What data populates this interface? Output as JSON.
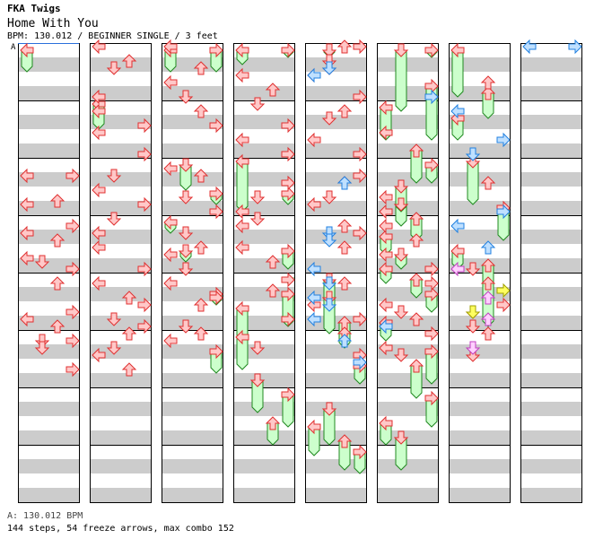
{
  "header": {
    "artist": "FKA Twigs",
    "title": "Home With You",
    "info": "BPM: 130.012 / BEGINNER SINGLE / 3 feet"
  },
  "marker": "A",
  "footer": {
    "bpm_line": "A: 130.012 BPM",
    "summary": "144 steps, 54 freeze arrows, max combo 152"
  },
  "colors": {
    "red_fill": "#ffc8c8",
    "red_stroke": "#e03030",
    "green_fill": "#ccffcc",
    "green_stroke": "#208820",
    "blue_fill": "#bfe0ff",
    "blue_stroke": "#2080e0",
    "pink_fill": "#ffd0ff",
    "pink_stroke": "#c040c0",
    "yellow_fill": "#ffff60",
    "yellow_stroke": "#a0a000",
    "stripe": "#cccccc"
  },
  "notes": [
    [
      [
        0,
        9.25,
        0
      ],
      [
        0,
        9.25,
        3
      ],
      [
        0,
        11.0,
        2
      ],
      [
        0,
        11.25,
        0
      ],
      [
        0,
        12.75,
        3
      ],
      [
        0,
        13.25,
        0
      ],
      [
        0,
        13.75,
        2
      ],
      [
        0,
        15.0,
        0
      ],
      [
        0,
        15.25,
        1
      ],
      [
        0,
        15.75,
        3
      ],
      [
        0,
        16.75,
        2
      ],
      [
        0,
        18.75,
        3
      ],
      [
        0,
        19.25,
        0
      ],
      [
        0,
        19.75,
        2
      ],
      [
        0,
        20.75,
        1
      ],
      [
        0,
        20.75,
        3
      ],
      [
        0,
        21.25,
        1
      ],
      [
        0,
        22.75,
        3
      ]
    ],
    [
      [
        1,
        0.25,
        0
      ],
      [
        1,
        1.25,
        2
      ],
      [
        1,
        1.75,
        1
      ],
      [
        1,
        3.75,
        0
      ],
      [
        1,
        4.75,
        0
      ],
      [
        1,
        5.75,
        3
      ],
      [
        1,
        6.25,
        0
      ],
      [
        1,
        7.75,
        3
      ],
      [
        1,
        9.25,
        1
      ],
      [
        1,
        10.25,
        0
      ],
      [
        1,
        11.25,
        3
      ],
      [
        1,
        12.25,
        1
      ],
      [
        1,
        13.25,
        0
      ],
      [
        1,
        14.25,
        0
      ],
      [
        1,
        15.75,
        3
      ],
      [
        1,
        16.75,
        0
      ],
      [
        1,
        17.75,
        2
      ],
      [
        1,
        18.25,
        3
      ],
      [
        1,
        19.25,
        1
      ],
      [
        1,
        19.75,
        3
      ],
      [
        1,
        20.25,
        2
      ],
      [
        1,
        21.25,
        1
      ],
      [
        1,
        21.75,
        0
      ],
      [
        1,
        22.75,
        2
      ]
    ],
    [
      [
        2,
        0.25,
        0
      ],
      [
        2,
        1.75,
        2
      ],
      [
        2,
        2.75,
        0
      ],
      [
        2,
        3.75,
        1
      ],
      [
        2,
        4.75,
        2
      ],
      [
        2,
        5.75,
        3
      ],
      [
        2,
        8.75,
        0
      ],
      [
        2,
        9.25,
        2
      ],
      [
        2,
        10.75,
        1
      ],
      [
        2,
        11.75,
        3
      ],
      [
        2,
        13.25,
        1
      ],
      [
        2,
        14.25,
        2
      ],
      [
        2,
        14.75,
        0
      ],
      [
        2,
        15.75,
        1
      ],
      [
        2,
        16.75,
        0
      ],
      [
        2,
        17.75,
        3
      ],
      [
        2,
        18.25,
        2
      ],
      [
        2,
        19.75,
        1
      ],
      [
        2,
        20.25,
        2
      ],
      [
        2,
        20.75,
        0
      ]
    ],
    [
      [
        3,
        2.25,
        0
      ],
      [
        3,
        3.25,
        2
      ],
      [
        3,
        4.25,
        1
      ],
      [
        3,
        5.75,
        3
      ],
      [
        3,
        6.75,
        0
      ],
      [
        3,
        7.75,
        3
      ],
      [
        3,
        9.75,
        3
      ],
      [
        3,
        10.75,
        1
      ],
      [
        3,
        11.75,
        0
      ],
      [
        3,
        12.25,
        1
      ],
      [
        3,
        12.75,
        0
      ],
      [
        3,
        14.25,
        0
      ],
      [
        3,
        15.25,
        2
      ],
      [
        3,
        17.25,
        2
      ],
      [
        3,
        19.25,
        3
      ],
      [
        3,
        21.25,
        1
      ]
    ],
    [
      [
        4,
        0.25,
        2
      ],
      [
        4,
        0.25,
        3
      ],
      [
        4,
        1.25,
        1
      ],
      [
        4,
        1.75,
        1
      ],
      [
        4,
        2.25,
        0
      ],
      [
        4,
        3.75,
        3
      ],
      [
        4,
        4.75,
        2
      ],
      [
        4,
        5.25,
        1
      ],
      [
        4,
        6.75,
        0
      ],
      [
        4,
        7.75,
        3
      ],
      [
        4,
        9.25,
        3
      ],
      [
        4,
        9.75,
        2
      ],
      [
        4,
        10.75,
        1
      ],
      [
        4,
        11.25,
        0
      ],
      [
        4,
        12.75,
        2
      ],
      [
        4,
        13.25,
        3
      ],
      [
        4,
        14.25,
        2
      ],
      [
        4,
        16.75,
        2
      ],
      [
        4,
        17.75,
        1
      ],
      [
        4,
        18.25,
        0
      ],
      [
        4,
        19.25,
        3
      ],
      [
        4,
        20.25,
        2
      ],
      [
        4,
        21.75,
        3
      ]
    ],
    [
      [
        5,
        6.25,
        0
      ],
      [
        5,
        10.75,
        0
      ],
      [
        5,
        11.25,
        1
      ],
      [
        5,
        11.75,
        0
      ],
      [
        5,
        12.75,
        0
      ],
      [
        5,
        13.75,
        2
      ],
      [
        5,
        14.75,
        0
      ],
      [
        5,
        15.75,
        3
      ],
      [
        5,
        16.75,
        3
      ],
      [
        5,
        18.25,
        0
      ],
      [
        5,
        18.75,
        1
      ],
      [
        5,
        19.25,
        2
      ],
      [
        5,
        20.25,
        3
      ],
      [
        5,
        21.25,
        0
      ],
      [
        5,
        21.75,
        1
      ]
    ],
    [
      [
        6,
        2.75,
        2
      ],
      [
        6,
        9.75,
        2
      ],
      [
        6,
        15.75,
        1
      ],
      [
        6,
        16.75,
        2
      ],
      [
        6,
        18.25,
        3
      ],
      [
        6,
        18.75,
        1
      ],
      [
        6,
        19.75,
        1
      ],
      [
        6,
        20.25,
        2
      ],
      [
        6,
        21.75,
        1
      ]
    ]
  ],
  "holds": [
    [
      0,
      0.5,
      0,
      2.0
    ],
    [
      1,
      4.25,
      0,
      6.0
    ],
    [
      2,
      0.5,
      0,
      2.0
    ],
    [
      2,
      0.5,
      3,
      2.0
    ],
    [
      2,
      8.5,
      1,
      10.25
    ],
    [
      2,
      10.5,
      3,
      11.25
    ],
    [
      2,
      12.5,
      0,
      13.25
    ],
    [
      2,
      14.5,
      1,
      15.25
    ],
    [
      2,
      17.5,
      3,
      18.25
    ],
    [
      2,
      21.5,
      3,
      23.0
    ],
    [
      3,
      0.5,
      0,
      1.5
    ],
    [
      3,
      0.5,
      3,
      1.0
    ],
    [
      3,
      8.25,
      0,
      11.75
    ],
    [
      3,
      10.5,
      3,
      11.25
    ],
    [
      3,
      14.5,
      3,
      15.75
    ],
    [
      3,
      17.5,
      3,
      19.75
    ],
    [
      3,
      16.5,
      3,
      16.75
    ],
    [
      3,
      18.5,
      0,
      20.75
    ],
    [
      3,
      20.5,
      0,
      22.75
    ],
    [
      3,
      23.5,
      1,
      25.75
    ],
    [
      3,
      24.5,
      3,
      26.75
    ],
    [
      3,
      26.5,
      2,
      28.0
    ],
    [
      4,
      0.5,
      1,
      1.0
    ],
    [
      4,
      16.5,
      1,
      20.25
    ],
    [
      4,
      19.5,
      2,
      21.25
    ],
    [
      4,
      22.5,
      3,
      23.75
    ],
    [
      4,
      25.5,
      1,
      28.0
    ],
    [
      4,
      26.75,
      0,
      28.75
    ],
    [
      4,
      27.75,
      2,
      29.75
    ],
    [
      4,
      28.5,
      3,
      30.0
    ],
    [
      5,
      0.5,
      1,
      4.75
    ],
    [
      5,
      0.5,
      3,
      1.0
    ],
    [
      5,
      3.0,
      3,
      6.75
    ],
    [
      5,
      4.5,
      0,
      6.75
    ],
    [
      5,
      7.5,
      2,
      9.75
    ],
    [
      5,
      8.5,
      3,
      9.75
    ],
    [
      5,
      11.25,
      1,
      12.75
    ],
    [
      5,
      10.0,
      1,
      11.75
    ],
    [
      5,
      12.25,
      2,
      13.75
    ],
    [
      5,
      13.5,
      0,
      14.75
    ],
    [
      5,
      14.75,
      1,
      15.75
    ],
    [
      5,
      15.75,
      0,
      16.75
    ],
    [
      5,
      16.5,
      2,
      17.75
    ],
    [
      5,
      17.5,
      3,
      18.75
    ],
    [
      5,
      19.5,
      0,
      20.75
    ],
    [
      5,
      21.5,
      3,
      23.75
    ],
    [
      5,
      22.5,
      2,
      24.75
    ],
    [
      5,
      24.75,
      3,
      26.75
    ],
    [
      5,
      26.5,
      0,
      28.0
    ],
    [
      5,
      27.5,
      1,
      29.75
    ],
    [
      6,
      0.5,
      0,
      3.75
    ],
    [
      6,
      3.5,
      2,
      5.25
    ],
    [
      6,
      5.25,
      0,
      6.75
    ],
    [
      6,
      8.25,
      1,
      11.25
    ],
    [
      6,
      11.5,
      3,
      13.75
    ],
    [
      6,
      14.5,
      0,
      15.75
    ],
    [
      6,
      15.5,
      2,
      19.75
    ]
  ],
  "colored": [
    [
      4,
      1.75,
      1,
      "blue"
    ],
    [
      4,
      2.25,
      0,
      "blue"
    ],
    [
      4,
      9.75,
      2,
      "blue"
    ],
    [
      4,
      13.25,
      1,
      "blue"
    ],
    [
      4,
      13.75,
      1,
      "blue"
    ],
    [
      4,
      15.75,
      0,
      "blue"
    ],
    [
      4,
      16.75,
      1,
      "blue"
    ],
    [
      4,
      17.75,
      0,
      "blue"
    ],
    [
      4,
      18.25,
      1,
      "blue"
    ],
    [
      4,
      19.25,
      0,
      "blue"
    ],
    [
      4,
      20.75,
      2,
      "blue"
    ],
    [
      4,
      22.25,
      3,
      "blue"
    ],
    [
      5,
      3.75,
      3,
      "blue"
    ],
    [
      5,
      19.75,
      0,
      "blue"
    ],
    [
      6,
      4.75,
      0,
      "blue"
    ],
    [
      6,
      6.75,
      3,
      "blue"
    ],
    [
      6,
      7.75,
      1,
      "blue"
    ],
    [
      6,
      11.75,
      3,
      "blue"
    ],
    [
      6,
      12.75,
      0,
      "blue"
    ],
    [
      6,
      14.25,
      2,
      "blue"
    ],
    [
      6,
      15.75,
      0,
      "pink"
    ],
    [
      6,
      17.25,
      3,
      "yellow"
    ],
    [
      6,
      17.75,
      2,
      "pink"
    ],
    [
      6,
      18.75,
      1,
      "yellow"
    ],
    [
      6,
      19.25,
      2,
      "pink"
    ],
    [
      6,
      21.25,
      1,
      "pink"
    ],
    [
      7,
      0.25,
      0,
      "blue"
    ],
    [
      7,
      0.25,
      3,
      "blue"
    ]
  ]
}
